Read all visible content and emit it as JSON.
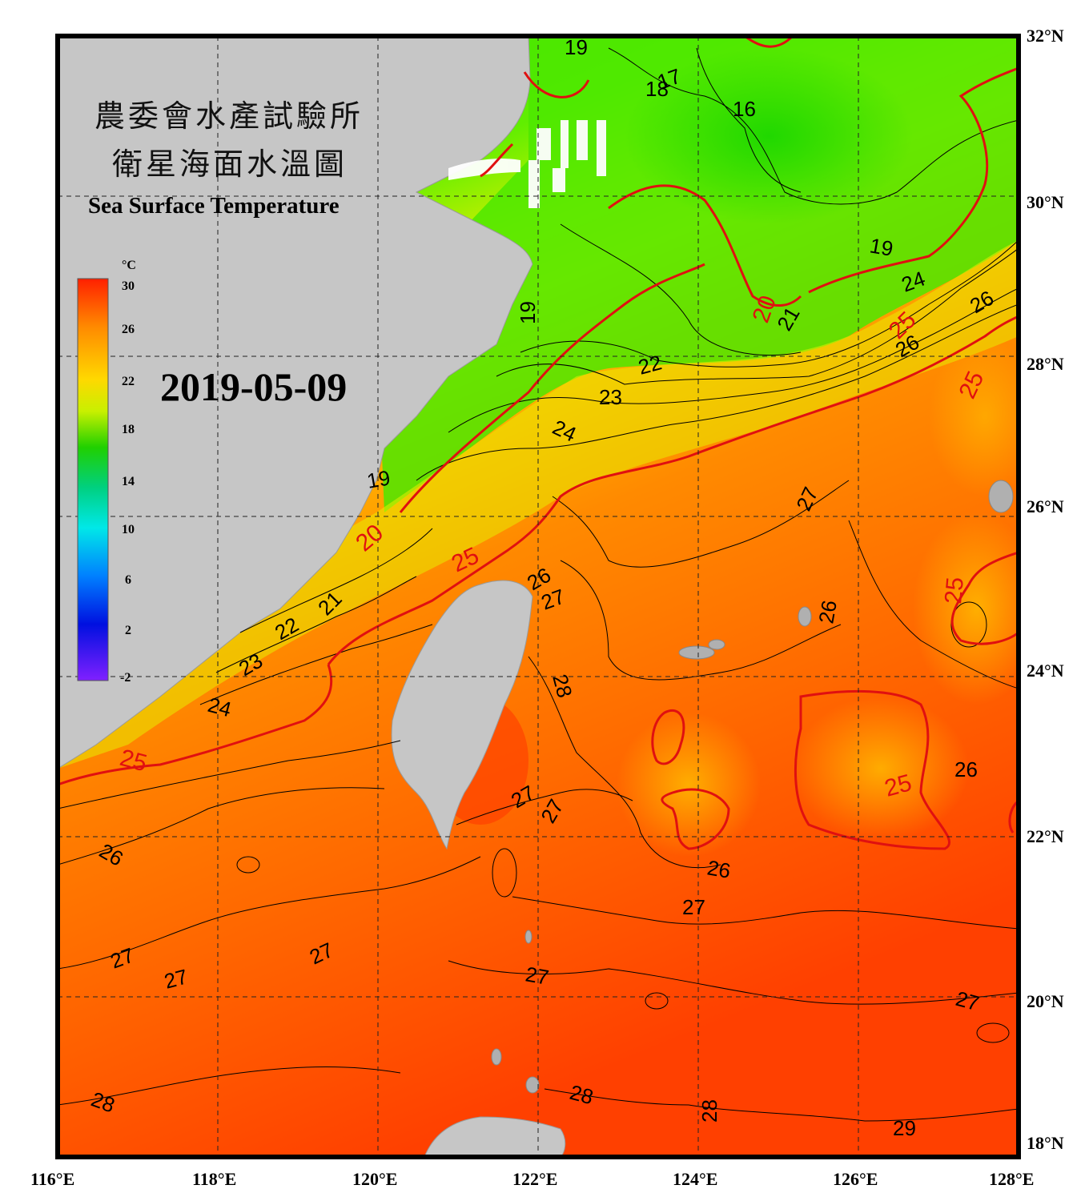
{
  "title_cn_line1": "農委會水產試驗所",
  "title_cn_line2": "衛星海面水溫圖",
  "title_en": "Sea Surface Temperature",
  "date": "2019-05-09",
  "colorbar": {
    "unit": "°C",
    "ticks": [
      "30",
      "26",
      "22",
      "18",
      "14",
      "10",
      "6",
      "2",
      "-2"
    ]
  },
  "axes": {
    "lon_labels": [
      "116°E",
      "118°E",
      "120°E",
      "122°E",
      "124°E",
      "126°E",
      "128°E"
    ],
    "lat_labels": [
      "32°N",
      "30°N",
      "28°N",
      "26°N",
      "24°N",
      "22°N",
      "20°N",
      "18°N"
    ]
  },
  "contour_labels_black": [
    "19",
    "17",
    "18",
    "16",
    "19",
    "24",
    "26",
    "26",
    "21",
    "22",
    "23",
    "24",
    "19",
    "19",
    "21",
    "22",
    "23",
    "24",
    "26",
    "27",
    "27",
    "26",
    "28",
    "27",
    "27",
    "26",
    "26",
    "27",
    "26",
    "27",
    "27",
    "27",
    "27",
    "27",
    "28",
    "28",
    "28",
    "29"
  ],
  "contour_labels_red": [
    "20",
    "25",
    "25",
    "20",
    "25",
    "25",
    "25",
    "25"
  ],
  "colors": {
    "land": "#c6c6c6",
    "isotherm_25_20": "#e01010",
    "frame": "#000000"
  }
}
